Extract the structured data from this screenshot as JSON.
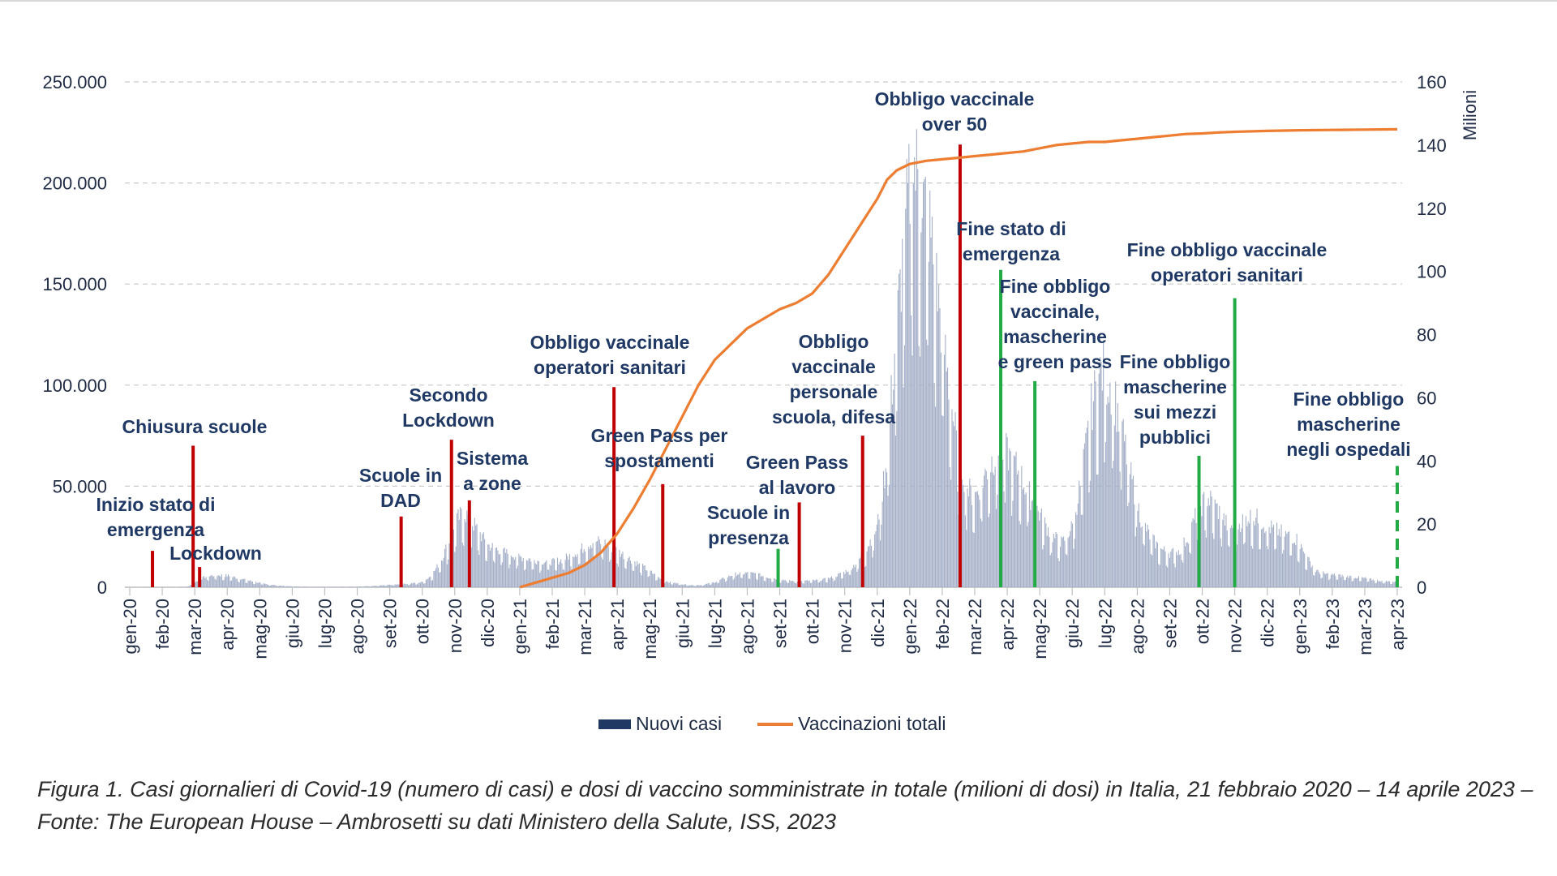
{
  "chart_data": {
    "type": "bar+line",
    "title": "",
    "left_axis": {
      "ticks": [
        "0",
        "50.000",
        "100.000",
        "150.000",
        "200.000",
        "250.000"
      ],
      "min": 0,
      "max": 250000
    },
    "right_axis": {
      "label": "Milioni",
      "ticks": [
        "0",
        "20",
        "40",
        "60",
        "80",
        "100",
        "120",
        "140",
        "160"
      ],
      "min": 0,
      "max": 160
    },
    "months": [
      "gen-20",
      "feb-20",
      "mar-20",
      "apr-20",
      "mag-20",
      "giu-20",
      "lug-20",
      "ago-20",
      "set-20",
      "ott-20",
      "nov-20",
      "dic-20",
      "gen-21",
      "feb-21",
      "mar-21",
      "apr-21",
      "mag-21",
      "giu-21",
      "lug-21",
      "ago-21",
      "set-21",
      "ott-21",
      "nov-21",
      "dic-21",
      "gen-22",
      "feb-22",
      "mar-22",
      "apr-22",
      "mag-22",
      "giu-22",
      "lug-22",
      "ago-22",
      "set-22",
      "ott-22",
      "nov-22",
      "dic-22",
      "gen-23",
      "feb-23",
      "mar-23",
      "apr-23"
    ],
    "series": [
      {
        "name": "Nuovi casi",
        "color": "#1f3864",
        "type": "bar",
        "points": [
          [
            1.5,
            0
          ],
          [
            1.8,
            300
          ],
          [
            2.0,
            2500
          ],
          [
            2.3,
            5000
          ],
          [
            2.6,
            6000
          ],
          [
            3.0,
            5800
          ],
          [
            3.4,
            4200
          ],
          [
            3.8,
            2800
          ],
          [
            4.2,
            1500
          ],
          [
            4.6,
            800
          ],
          [
            5.0,
            400
          ],
          [
            5.5,
            250
          ],
          [
            6.0,
            200
          ],
          [
            6.5,
            250
          ],
          [
            7.0,
            300
          ],
          [
            7.5,
            600
          ],
          [
            8.0,
            1200
          ],
          [
            8.3,
            1500
          ],
          [
            8.6,
            1800
          ],
          [
            9.0,
            2500
          ],
          [
            9.3,
            6000
          ],
          [
            9.6,
            14000
          ],
          [
            9.9,
            26000
          ],
          [
            10.1,
            34000
          ],
          [
            10.3,
            37000
          ],
          [
            10.5,
            33000
          ],
          [
            10.8,
            26000
          ],
          [
            11.0,
            21000
          ],
          [
            11.3,
            19000
          ],
          [
            11.6,
            17000
          ],
          [
            12.0,
            15000
          ],
          [
            12.3,
            14000
          ],
          [
            12.6,
            13000
          ],
          [
            13.0,
            12500
          ],
          [
            13.3,
            13500
          ],
          [
            13.7,
            17000
          ],
          [
            14.0,
            20000
          ],
          [
            14.3,
            23000
          ],
          [
            14.6,
            22000
          ],
          [
            15.0,
            18000
          ],
          [
            15.3,
            15000
          ],
          [
            15.6,
            12000
          ],
          [
            16.0,
            8000
          ],
          [
            16.3,
            4500
          ],
          [
            16.6,
            2500
          ],
          [
            17.0,
            1500
          ],
          [
            17.3,
            1000
          ],
          [
            17.6,
            1100
          ],
          [
            18.0,
            2500
          ],
          [
            18.3,
            4500
          ],
          [
            18.6,
            6500
          ],
          [
            19.0,
            7000
          ],
          [
            19.3,
            6500
          ],
          [
            19.6,
            5000
          ],
          [
            20.0,
            4000
          ],
          [
            20.3,
            3200
          ],
          [
            20.6,
            3000
          ],
          [
            21.0,
            3300
          ],
          [
            21.3,
            3700
          ],
          [
            21.6,
            4800
          ],
          [
            22.0,
            7500
          ],
          [
            22.3,
            11000
          ],
          [
            22.6,
            17000
          ],
          [
            23.0,
            30000
          ],
          [
            23.3,
            65000
          ],
          [
            23.6,
            130000
          ],
          [
            23.9,
            185000
          ],
          [
            24.1,
            210000
          ],
          [
            24.3,
            200000
          ],
          [
            24.6,
            180000
          ],
          [
            24.9,
            140000
          ],
          [
            25.2,
            100000
          ],
          [
            25.5,
            65000
          ],
          [
            25.8,
            48000
          ],
          [
            26.0,
            45000
          ],
          [
            26.3,
            55000
          ],
          [
            26.6,
            65000
          ],
          [
            26.9,
            68000
          ],
          [
            27.2,
            62000
          ],
          [
            27.5,
            52000
          ],
          [
            27.8,
            42000
          ],
          [
            28.1,
            33000
          ],
          [
            28.4,
            25000
          ],
          [
            28.7,
            22000
          ],
          [
            29.0,
            30000
          ],
          [
            29.3,
            55000
          ],
          [
            29.6,
            90000
          ],
          [
            29.9,
            108000
          ],
          [
            30.2,
            100000
          ],
          [
            30.5,
            80000
          ],
          [
            30.8,
            55000
          ],
          [
            31.1,
            35000
          ],
          [
            31.4,
            25000
          ],
          [
            31.7,
            19000
          ],
          [
            32.0,
            17000
          ],
          [
            32.3,
            18000
          ],
          [
            32.6,
            26000
          ],
          [
            32.9,
            40000
          ],
          [
            33.2,
            44000
          ],
          [
            33.5,
            38000
          ],
          [
            33.8,
            30000
          ],
          [
            34.1,
            31000
          ],
          [
            34.4,
            35000
          ],
          [
            34.7,
            34000
          ],
          [
            35.0,
            30000
          ],
          [
            35.3,
            28000
          ],
          [
            35.6,
            26000
          ],
          [
            35.9,
            24000
          ],
          [
            36.2,
            15000
          ],
          [
            36.5,
            8000
          ],
          [
            36.8,
            6500
          ],
          [
            37.1,
            6000
          ],
          [
            37.4,
            5500
          ],
          [
            37.7,
            5000
          ],
          [
            38.0,
            4500
          ],
          [
            38.3,
            3500
          ],
          [
            38.6,
            3000
          ],
          [
            39.0,
            2500
          ]
        ]
      },
      {
        "name": "Vaccinazioni totali",
        "color": "#ed7d31",
        "type": "line",
        "points": [
          [
            12.0,
            0
          ],
          [
            12.5,
            1.5
          ],
          [
            13.0,
            3
          ],
          [
            13.5,
            4.5
          ],
          [
            14.0,
            7
          ],
          [
            14.5,
            11
          ],
          [
            15.0,
            17
          ],
          [
            15.5,
            25
          ],
          [
            16.0,
            34
          ],
          [
            16.5,
            44
          ],
          [
            17.0,
            54
          ],
          [
            17.5,
            64
          ],
          [
            18.0,
            72
          ],
          [
            18.5,
            77
          ],
          [
            19.0,
            82
          ],
          [
            19.5,
            85
          ],
          [
            20.0,
            88
          ],
          [
            20.5,
            90
          ],
          [
            21.0,
            93
          ],
          [
            21.5,
            99
          ],
          [
            22.0,
            107
          ],
          [
            22.5,
            115
          ],
          [
            23.0,
            123
          ],
          [
            23.3,
            129
          ],
          [
            23.6,
            132
          ],
          [
            24.0,
            134
          ],
          [
            24.5,
            135
          ],
          [
            25.0,
            135.5
          ],
          [
            25.5,
            136
          ],
          [
            26.0,
            136.5
          ],
          [
            26.5,
            137
          ],
          [
            27.0,
            137.5
          ],
          [
            27.5,
            138
          ],
          [
            28.0,
            139
          ],
          [
            28.5,
            140
          ],
          [
            29.0,
            140.5
          ],
          [
            29.5,
            141
          ],
          [
            30.0,
            141
          ],
          [
            30.5,
            141.5
          ],
          [
            31.0,
            142
          ],
          [
            31.5,
            142.5
          ],
          [
            32.0,
            143
          ],
          [
            32.5,
            143.5
          ],
          [
            33.0,
            143.7
          ],
          [
            33.5,
            144
          ],
          [
            34.0,
            144.2
          ],
          [
            35.0,
            144.5
          ],
          [
            36.0,
            144.7
          ],
          [
            37.0,
            144.8
          ],
          [
            38.0,
            144.9
          ],
          [
            39.0,
            145
          ]
        ]
      }
    ],
    "events": [
      {
        "x": 0.7,
        "top": 18000,
        "color": "#c00000",
        "dashed": false
      },
      {
        "x": 1.95,
        "top": 70000,
        "color": "#c00000",
        "dashed": false
      },
      {
        "x": 2.15,
        "top": 10000,
        "color": "#c00000",
        "dashed": false
      },
      {
        "x": 8.35,
        "top": 35000,
        "color": "#c00000",
        "dashed": false
      },
      {
        "x": 9.9,
        "top": 73000,
        "color": "#c00000",
        "dashed": false
      },
      {
        "x": 10.45,
        "top": 43000,
        "color": "#c00000",
        "dashed": false
      },
      {
        "x": 14.9,
        "top": 99000,
        "color": "#c00000",
        "dashed": false
      },
      {
        "x": 16.4,
        "top": 51000,
        "color": "#c00000",
        "dashed": false
      },
      {
        "x": 20.6,
        "top": 42000,
        "color": "#c00000",
        "dashed": false
      },
      {
        "x": 22.55,
        "top": 75000,
        "color": "#c00000",
        "dashed": false
      },
      {
        "x": 25.55,
        "top": 219000,
        "color": "#c00000",
        "dashed": false
      },
      {
        "x": 19.95,
        "top": 19000,
        "color": "#22aa44",
        "dashed": false
      },
      {
        "x": 26.8,
        "top": 157000,
        "color": "#22aa44",
        "dashed": false
      },
      {
        "x": 27.85,
        "top": 102000,
        "color": "#22aa44",
        "dashed": false
      },
      {
        "x": 32.9,
        "top": 65000,
        "color": "#22aa44",
        "dashed": false
      },
      {
        "x": 34.0,
        "top": 143000,
        "color": "#22aa44",
        "dashed": false
      },
      {
        "x": 39.0,
        "top": 60000,
        "color": "#22aa44",
        "dashed": true
      }
    ],
    "annotations": [
      {
        "lines": [
          "Inizio stato di",
          "emergenza"
        ]
      },
      {
        "lines": [
          "Chiusura scuole"
        ]
      },
      {
        "lines": [
          "Lockdown"
        ]
      },
      {
        "lines": [
          "Scuole in",
          "DAD"
        ]
      },
      {
        "lines": [
          "Secondo",
          "Lockdown"
        ]
      },
      {
        "lines": [
          "Sistema",
          "a zone"
        ]
      },
      {
        "lines": [
          "Obbligo vaccinale",
          "operatori sanitari"
        ]
      },
      {
        "lines": [
          "Green Pass per",
          "spostamenti"
        ]
      },
      {
        "lines": [
          "Scuole in",
          "presenza"
        ]
      },
      {
        "lines": [
          "Green Pass",
          "al lavoro"
        ]
      },
      {
        "lines": [
          "Obbligo",
          "vaccinale",
          "personale",
          "scuola, difesa"
        ]
      },
      {
        "lines": [
          "Obbligo vaccinale",
          "over 50"
        ]
      },
      {
        "lines": [
          "Fine stato di",
          "emergenza"
        ]
      },
      {
        "lines": [
          "Fine obbligo",
          "vaccinale,",
          "mascherine",
          "e green pass"
        ]
      },
      {
        "lines": [
          "Fine obbligo",
          "mascherine",
          "sui mezzi",
          "pubblici"
        ]
      },
      {
        "lines": [
          "Fine obbligo vaccinale",
          "operatori sanitari"
        ]
      },
      {
        "lines": [
          "Fine obbligo",
          "mascherine",
          "negli ospedali"
        ]
      }
    ],
    "legend": [
      {
        "label": "Nuovi casi",
        "color": "#1f3864",
        "kind": "bar"
      },
      {
        "label": "Vaccinazioni totali",
        "color": "#ed7d31",
        "kind": "line"
      }
    ],
    "grid": true
  },
  "caption": {
    "prefix": "Figura 1.",
    "text": "Casi giornalieri di Covid-19 (numero di casi) e dosi di vaccino somministrate in totale (milioni di dosi) in Italia, 21 febbraio 2020 – 14 aprile 2023 – Fonte: The European House – Ambrosetti su dati Ministero della Salute, ISS, 2023"
  }
}
